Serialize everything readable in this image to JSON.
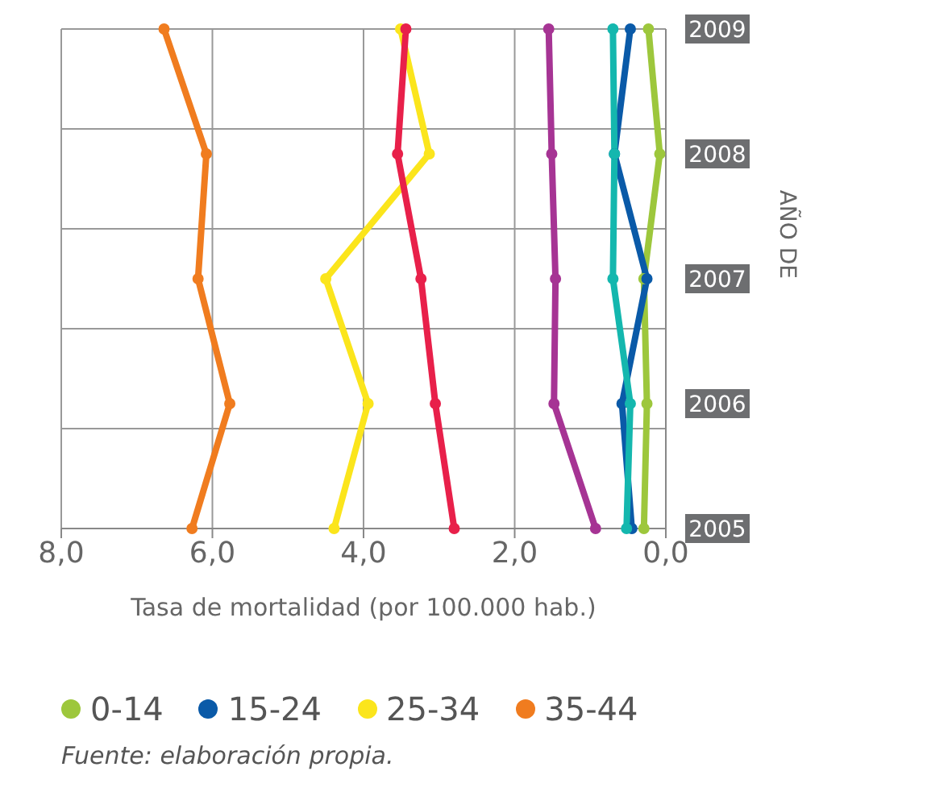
{
  "chart_data": {
    "type": "line",
    "orientation": "horizontal",
    "xlabel": "Tasa de mortalidad (por 100.000 hab.)",
    "ylabel": "AÑO DE",
    "categories": [
      "2009",
      "2008",
      "2007",
      "2006",
      "2005"
    ],
    "xlim": [
      8,
      0
    ],
    "xticks": [
      {
        "value": 8,
        "label": "8,0"
      },
      {
        "value": 6,
        "label": "6,0"
      },
      {
        "value": 4,
        "label": "4,0"
      },
      {
        "value": 2,
        "label": "2,0"
      },
      {
        "value": 0,
        "label": "0,0"
      }
    ],
    "series": [
      {
        "name": "0-14",
        "color": "#9dc73c",
        "values": [
          0.23,
          0.08,
          0.29,
          0.25,
          0.29
        ]
      },
      {
        "name": "15-24",
        "color": "#0a5aa8",
        "values": [
          0.47,
          0.68,
          0.25,
          0.58,
          0.45
        ]
      },
      {
        "name": "25-34",
        "color": "#fbe51c",
        "values": [
          3.51,
          3.13,
          4.5,
          3.94,
          4.39
        ]
      },
      {
        "name": "35-44",
        "color": "#f07c1f",
        "values": [
          6.64,
          6.08,
          6.19,
          5.77,
          6.27
        ]
      },
      {
        "color": "#e8204a",
        "values": [
          3.44,
          3.55,
          3.24,
          3.05,
          2.8
        ]
      },
      {
        "color": "#a63494",
        "values": [
          1.55,
          1.51,
          1.46,
          1.48,
          0.93
        ]
      },
      {
        "color": "#14b7ae",
        "values": [
          0.7,
          0.68,
          0.7,
          0.47,
          0.52
        ]
      }
    ],
    "grid": true,
    "legend": "bottom",
    "marker": "circle",
    "line_style": "solid",
    "annotations": [
      "Fuente: elaboración propia."
    ]
  }
}
